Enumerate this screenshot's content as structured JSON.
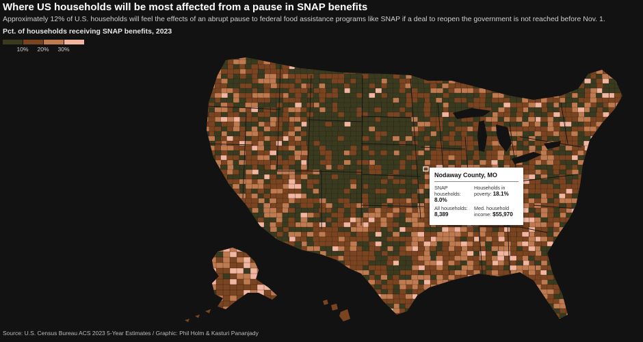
{
  "header": {
    "title": "Where US households will be most affected from a pause in SNAP benefits",
    "subtitle": "Approximately 12% of U.S. households will feel the effects of an abrupt pause to federal food assistance programs like SNAP if a deal to reopen the government is not reached before Nov. 1."
  },
  "legend": {
    "title": "Pct. of households receiving SNAP benefits, 2023",
    "bins": [
      {
        "color": "#3a3a1f",
        "max_pct": 10
      },
      {
        "color": "#7a4420",
        "max_pct": 20
      },
      {
        "color": "#c07a50",
        "max_pct": 30
      },
      {
        "color": "#f2b6a0",
        "max_pct": null
      }
    ],
    "ticks": [
      "10%",
      "20%",
      "30%"
    ]
  },
  "tooltip": {
    "county": "Nodaway County, MO",
    "snap_label": "SNAP households:",
    "snap_value": "8.0%",
    "poverty_label": "Households in poverty:",
    "poverty_value": "18.1%",
    "all_label": "All households:",
    "all_value": "8,389",
    "income_label": "Med. household income:",
    "income_value": "$55,970"
  },
  "source": "Source: U.S. Census Bureau ACS 2023 5-Year Estimates / Graphic: Phil Holm & Kasturi Pananjady"
}
